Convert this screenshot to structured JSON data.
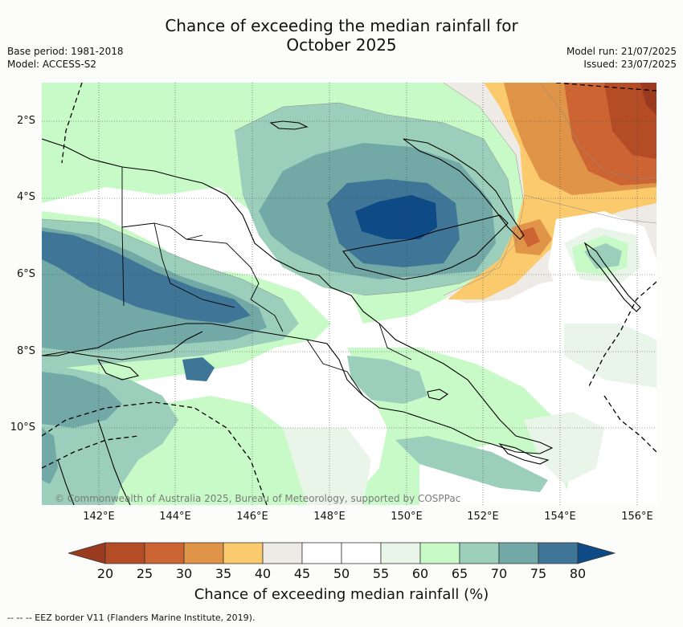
{
  "header": {
    "title_line1": "Chance of exceeding the median rainfall for",
    "title_line2": "October 2025",
    "base_period": "Base period: 1981-2018",
    "model": "Model: ACCESS-S2",
    "model_run": "Model run: 21/07/2025",
    "issued": "Issued: 23/07/2025"
  },
  "map": {
    "lat_labels": [
      "2°S",
      "4°S",
      "6°S",
      "8°S",
      "10°S"
    ],
    "lon_labels": [
      "142°E",
      "144°E",
      "146°E",
      "148°E",
      "150°E",
      "152°E",
      "154°E",
      "156°E"
    ],
    "copyright": "© Commonwealth of Australia 2025, Bureau of Meteorology, supported by COSPPac"
  },
  "legend": {
    "labels": [
      "20",
      "25",
      "30",
      "35",
      "40",
      "45",
      "50",
      "55",
      "60",
      "65",
      "70",
      "75",
      "80"
    ],
    "colors": {
      "below_20": "#9a3a1e",
      "20_25": "#b44c25",
      "25_30": "#cc6533",
      "30_35": "#e09448",
      "35_40": "#fbca6c",
      "40_45": "#eeebe6",
      "45_50": "#ffffff",
      "50_55": "#ffffff",
      "55_60": "#eaf5ea",
      "60_65": "#c8fac8",
      "65_70": "#9ccfbb",
      "70_75": "#72a8a6",
      "75_80": "#3f7596",
      "above_80": "#0d4a86"
    },
    "title": "Chance of exceeding median rainfall (%)"
  },
  "footnote": "-- -- -- EEZ border V11 (Flanders Marine Institute, 2019)."
}
